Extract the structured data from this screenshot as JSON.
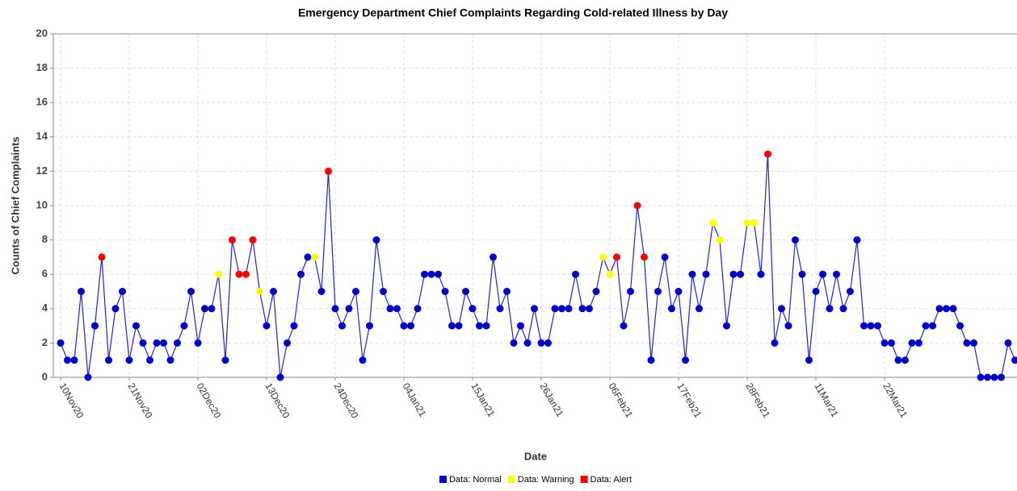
{
  "chart_data": {
    "type": "line",
    "title": "Emergency Department Chief Complaints Regarding Cold-related Illness by Day",
    "x_label": "Date",
    "y_label": "Counts of Chief Complaints",
    "categories": [
      "10Nov20",
      null,
      null,
      null,
      null,
      null,
      null,
      null,
      null,
      null,
      "21Nov20",
      null,
      null,
      null,
      null,
      null,
      null,
      null,
      null,
      null,
      "02Dec20",
      null,
      null,
      null,
      null,
      null,
      null,
      null,
      null,
      null,
      "13Dec20",
      null,
      null,
      null,
      null,
      null,
      null,
      null,
      null,
      null,
      "24Dec20",
      null,
      null,
      null,
      null,
      null,
      null,
      null,
      null,
      null,
      "04Jan21",
      null,
      null,
      null,
      null,
      null,
      null,
      null,
      null,
      null,
      "15Jan21",
      null,
      null,
      null,
      null,
      null,
      null,
      null,
      null,
      null,
      "26Jan21",
      null,
      null,
      null,
      null,
      null,
      null,
      null,
      null,
      null,
      "06Feb21",
      null,
      null,
      null,
      null,
      null,
      null,
      null,
      null,
      null,
      "17Feb21",
      null,
      null,
      null,
      null,
      null,
      null,
      null,
      null,
      null,
      "28Feb21",
      null,
      null,
      null,
      null,
      null,
      null,
      null,
      null,
      null,
      "11Mar21",
      null,
      null,
      null,
      null,
      null,
      null,
      null,
      null,
      null,
      "22Mar21",
      null,
      null,
      null,
      null,
      null,
      null,
      null,
      null,
      null,
      null,
      null,
      null,
      null,
      null,
      null,
      null,
      null,
      null,
      null
    ],
    "line_color": "#2222cc",
    "series": [
      {
        "name": "Data: Normal",
        "color": "#0000cc",
        "values": [
          2,
          1,
          1,
          5,
          0,
          3,
          null,
          1,
          4,
          5,
          1,
          3,
          2,
          1,
          2,
          2,
          1,
          2,
          3,
          5,
          2,
          4,
          4,
          null,
          1,
          null,
          null,
          null,
          null,
          null,
          3,
          5,
          0,
          2,
          3,
          6,
          7,
          null,
          5,
          null,
          4,
          3,
          4,
          5,
          1,
          3,
          8,
          5,
          4,
          4,
          3,
          3,
          4,
          6,
          6,
          6,
          5,
          3,
          3,
          5,
          4,
          3,
          3,
          7,
          4,
          5,
          2,
          3,
          2,
          4,
          2,
          2,
          4,
          4,
          4,
          6,
          4,
          4,
          5,
          null,
          null,
          null,
          3,
          5,
          null,
          null,
          1,
          5,
          7,
          4,
          5,
          1,
          6,
          4,
          6,
          null,
          null,
          3,
          6,
          6,
          null,
          null,
          6,
          null,
          2,
          4,
          3,
          8,
          6,
          1,
          5,
          6,
          4,
          6,
          4,
          5,
          8,
          3,
          3,
          3,
          2,
          2,
          1,
          1,
          2,
          2,
          3,
          3,
          4,
          4,
          4,
          3,
          2,
          2,
          0,
          0,
          0,
          0,
          2,
          1
        ]
      },
      {
        "name": "Data: Warning",
        "color": "#ffff00",
        "values": [
          null,
          null,
          null,
          null,
          null,
          null,
          null,
          null,
          null,
          null,
          null,
          null,
          null,
          null,
          null,
          null,
          null,
          null,
          null,
          null,
          null,
          null,
          null,
          6,
          null,
          null,
          null,
          null,
          null,
          5,
          null,
          null,
          null,
          null,
          null,
          null,
          null,
          7,
          null,
          null,
          null,
          null,
          null,
          null,
          null,
          null,
          null,
          null,
          null,
          null,
          null,
          null,
          null,
          null,
          null,
          null,
          null,
          null,
          null,
          null,
          null,
          null,
          null,
          null,
          null,
          null,
          null,
          null,
          null,
          null,
          null,
          null,
          null,
          null,
          null,
          null,
          null,
          null,
          null,
          7,
          6,
          null,
          null,
          null,
          null,
          null,
          null,
          null,
          null,
          null,
          null,
          null,
          null,
          null,
          null,
          9,
          8,
          null,
          null,
          null,
          9,
          9,
          null,
          null,
          null,
          null,
          null,
          null,
          null,
          null,
          null,
          null,
          null,
          null,
          null,
          null,
          null,
          null,
          null,
          null,
          null,
          null,
          null,
          null,
          null,
          null,
          null,
          null,
          null,
          null,
          null,
          null,
          null,
          null,
          null,
          null,
          null,
          null,
          null,
          null
        ]
      },
      {
        "name": "Data: Alert",
        "color": "#ff0000",
        "values": [
          null,
          null,
          null,
          null,
          null,
          null,
          7,
          null,
          null,
          null,
          null,
          null,
          null,
          null,
          null,
          null,
          null,
          null,
          null,
          null,
          null,
          null,
          null,
          null,
          null,
          8,
          6,
          6,
          8,
          null,
          null,
          null,
          null,
          null,
          null,
          null,
          null,
          null,
          null,
          12,
          null,
          null,
          null,
          null,
          null,
          null,
          null,
          null,
          null,
          null,
          null,
          null,
          null,
          null,
          null,
          null,
          null,
          null,
          null,
          null,
          null,
          null,
          null,
          null,
          null,
          null,
          null,
          null,
          null,
          null,
          null,
          null,
          null,
          null,
          null,
          null,
          null,
          null,
          null,
          null,
          null,
          7,
          null,
          null,
          10,
          7,
          null,
          null,
          null,
          null,
          null,
          null,
          null,
          null,
          null,
          null,
          null,
          null,
          null,
          null,
          null,
          null,
          null,
          13,
          null,
          null,
          null,
          null,
          null,
          null,
          null,
          null,
          null,
          null,
          null,
          null,
          null,
          null,
          null,
          null,
          null,
          null,
          null,
          null,
          null,
          null,
          null,
          null,
          null,
          null,
          null,
          null,
          null,
          null,
          null,
          null,
          null,
          null,
          null,
          null
        ]
      }
    ],
    "ylim": [
      0,
      20
    ],
    "yticks": [
      0,
      2,
      4,
      6,
      8,
      10,
      12,
      14,
      16,
      18,
      20
    ],
    "grid": true,
    "legend": "bottom"
  }
}
